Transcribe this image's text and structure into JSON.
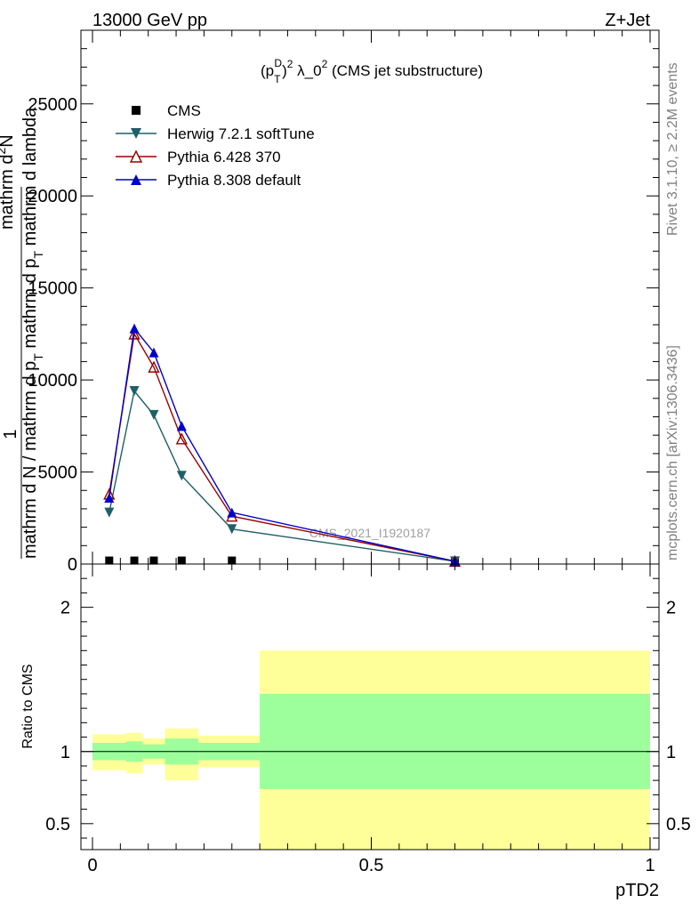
{
  "header": {
    "energy_label": "13000 GeV pp",
    "process_label": "Z+Jet"
  },
  "side_labels": {
    "rivet": "Rivet 3.1.10, ≥ 2.2M events",
    "mcplots": "mcplots.cern.ch [arXiv:1306.3436]"
  },
  "watermark": "CMS_2021_I1920187",
  "chart_data": [
    {
      "type": "line",
      "title_parts": {
        "pre": "(p",
        "sub": "T",
        "sup1": "D",
        "sup2": "2",
        "post": " λ_0",
        "sup3": "2",
        "tail": " (CMS jet substructure)"
      },
      "ylabel_lines": [
        "1",
        "mathrm d N / mathrm d p_T mathrm d lambda",
        "mathrm d^{2}N",
        "mathrm d p_T mathrm d lambda"
      ],
      "ylabel_parts": {
        "num": "1",
        "frac_main": "mathrm d N / mathrm d p",
        "frac_sub": "T",
        "frac_main2": "mathrm d p",
        "frac_sub2": "T",
        "frac_tail2": "mathrm d lambda",
        "num2": "mathrm d",
        "num2_sup": "2",
        "num2_tail": "N"
      },
      "xlim": [
        0,
        1
      ],
      "ylim": [
        0,
        29000
      ],
      "x_ticks": [
        0,
        0.5,
        1
      ],
      "x_tick_labels": [
        "0",
        "0.5",
        "1"
      ],
      "y_ticks": [
        0,
        5000,
        10000,
        15000,
        20000,
        25000
      ],
      "y_tick_labels": [
        "0",
        "5000",
        "10000",
        "15000",
        "20000",
        "25000"
      ],
      "legend_position": "top-left",
      "series": [
        {
          "name": "CMS",
          "marker": "square",
          "color": "#000000",
          "x": [
            0.03,
            0.075,
            0.11,
            0.16,
            0.25,
            0.65
          ],
          "y": [
            20,
            20,
            20,
            20,
            20,
            20
          ]
        },
        {
          "name": "Herwig 7.2.1 softTune",
          "marker": "triangle-down",
          "color": "#1f5f66",
          "x": [
            0.03,
            0.075,
            0.11,
            0.16,
            0.25,
            0.65
          ],
          "y": [
            2800,
            9400,
            8100,
            4800,
            1900,
            150
          ]
        },
        {
          "name": "Pythia 6.428 370",
          "marker": "triangle-up-open",
          "color": "#990000",
          "x": [
            0.03,
            0.075,
            0.11,
            0.16,
            0.25,
            0.65
          ],
          "y": [
            3800,
            12500,
            10700,
            6800,
            2600,
            150
          ]
        },
        {
          "name": "Pythia 8.308 default",
          "marker": "triangle-up",
          "color": "#0000cc",
          "x": [
            0.03,
            0.075,
            0.11,
            0.16,
            0.25,
            0.65
          ],
          "y": [
            3600,
            12800,
            11500,
            7500,
            2800,
            150
          ]
        }
      ]
    },
    {
      "type": "area",
      "ylabel": "Ratio to CMS",
      "xlabel": "pTD2",
      "xlim": [
        0,
        1
      ],
      "ylim": [
        0.32,
        2.3
      ],
      "x_ticks": [
        0,
        0.5,
        1
      ],
      "x_tick_labels": [
        "0",
        "0.5",
        "1"
      ],
      "y_ticks": [
        0.5,
        1,
        2
      ],
      "y_tick_labels": [
        "0.5",
        "1",
        "2"
      ],
      "reference_line": 1,
      "bins": [
        {
          "x0": 0.0,
          "x1": 0.06,
          "stat_lo": 0.94,
          "stat_hi": 1.06,
          "tot_lo": 0.87,
          "tot_hi": 1.12
        },
        {
          "x0": 0.06,
          "x1": 0.09,
          "stat_lo": 0.93,
          "stat_hi": 1.07,
          "tot_lo": 0.85,
          "tot_hi": 1.13
        },
        {
          "x0": 0.09,
          "x1": 0.13,
          "stat_lo": 0.95,
          "stat_hi": 1.05,
          "tot_lo": 0.91,
          "tot_hi": 1.09
        },
        {
          "x0": 0.13,
          "x1": 0.19,
          "stat_lo": 0.91,
          "stat_hi": 1.09,
          "tot_lo": 0.8,
          "tot_hi": 1.16
        },
        {
          "x0": 0.19,
          "x1": 0.3,
          "stat_lo": 0.94,
          "stat_hi": 1.06,
          "tot_lo": 0.89,
          "tot_hi": 1.11
        },
        {
          "x0": 0.3,
          "x1": 1.0,
          "stat_lo": 0.74,
          "stat_hi": 1.4,
          "tot_lo": 0.32,
          "tot_hi": 1.7
        }
      ],
      "stat_color": "#9cff9c",
      "total_color": "#ffff99"
    }
  ]
}
